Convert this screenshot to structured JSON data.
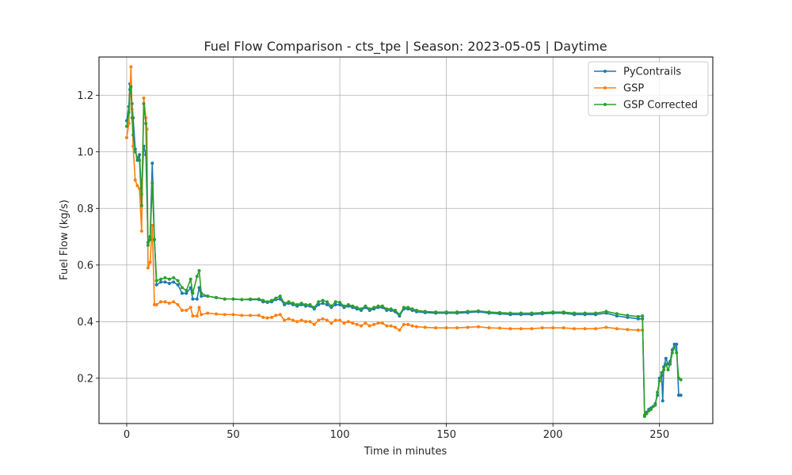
{
  "chart_data": {
    "type": "line",
    "title": "Fuel Flow Comparison - cts_tpe | Season: 2023-05-05 | Daytime",
    "xlabel": "Time in minutes",
    "ylabel": "Fuel Flow (kg/s)",
    "xlim": [
      -13,
      275
    ],
    "ylim": [
      0.04,
      1.335
    ],
    "xticks": [
      0,
      50,
      100,
      150,
      200,
      250
    ],
    "yticks": [
      0.2,
      0.4,
      0.6,
      0.8,
      1.0,
      1.2
    ],
    "xtick_labels": [
      "0",
      "50",
      "100",
      "150",
      "200",
      "250"
    ],
    "ytick_labels": [
      "0.2",
      "0.4",
      "0.6",
      "0.8",
      "1.0",
      "1.2"
    ],
    "grid": true,
    "legend_position": "top-right",
    "series": [
      {
        "name": "PyContrails",
        "color": "#1f77b4",
        "points": [
          [
            0,
            1.11
          ],
          [
            1,
            1.16
          ],
          [
            1.5,
            1.24
          ],
          [
            2.5,
            1.17
          ],
          [
            3,
            1.12
          ],
          [
            4,
            1.01
          ],
          [
            5,
            0.97
          ],
          [
            6,
            0.99
          ],
          [
            7,
            0.85
          ],
          [
            8,
            1.02
          ],
          [
            9,
            0.99
          ],
          [
            10,
            0.68
          ],
          [
            11,
            0.7
          ],
          [
            12,
            0.96
          ],
          [
            13,
            0.69
          ],
          [
            14,
            0.53
          ],
          [
            16,
            0.54
          ],
          [
            18,
            0.54
          ],
          [
            20,
            0.535
          ],
          [
            22,
            0.54
          ],
          [
            24,
            0.53
          ],
          [
            26,
            0.5
          ],
          [
            28,
            0.5
          ],
          [
            30,
            0.52
          ],
          [
            31,
            0.48
          ],
          [
            33,
            0.48
          ],
          [
            34,
            0.52
          ],
          [
            35,
            0.49
          ],
          [
            38,
            0.49
          ],
          [
            42,
            0.485
          ],
          [
            46,
            0.48
          ],
          [
            50,
            0.48
          ],
          [
            54,
            0.478
          ],
          [
            58,
            0.478
          ],
          [
            62,
            0.478
          ],
          [
            64,
            0.47
          ],
          [
            66,
            0.468
          ],
          [
            68,
            0.47
          ],
          [
            70,
            0.478
          ],
          [
            72,
            0.48
          ],
          [
            74,
            0.46
          ],
          [
            76,
            0.465
          ],
          [
            78,
            0.46
          ],
          [
            80,
            0.455
          ],
          [
            82,
            0.46
          ],
          [
            84,
            0.455
          ],
          [
            86,
            0.455
          ],
          [
            88,
            0.445
          ],
          [
            90,
            0.46
          ],
          [
            92,
            0.465
          ],
          [
            94,
            0.46
          ],
          [
            96,
            0.45
          ],
          [
            98,
            0.46
          ],
          [
            100,
            0.46
          ],
          [
            102,
            0.45
          ],
          [
            104,
            0.455
          ],
          [
            106,
            0.45
          ],
          [
            108,
            0.445
          ],
          [
            110,
            0.44
          ],
          [
            112,
            0.45
          ],
          [
            114,
            0.44
          ],
          [
            116,
            0.445
          ],
          [
            118,
            0.45
          ],
          [
            120,
            0.45
          ],
          [
            122,
            0.44
          ],
          [
            124,
            0.44
          ],
          [
            126,
            0.435
          ],
          [
            128,
            0.42
          ],
          [
            130,
            0.445
          ],
          [
            132,
            0.445
          ],
          [
            134,
            0.44
          ],
          [
            136,
            0.435
          ],
          [
            140,
            0.432
          ],
          [
            145,
            0.43
          ],
          [
            150,
            0.43
          ],
          [
            155,
            0.43
          ],
          [
            160,
            0.432
          ],
          [
            165,
            0.435
          ],
          [
            170,
            0.43
          ],
          [
            175,
            0.428
          ],
          [
            180,
            0.425
          ],
          [
            185,
            0.425
          ],
          [
            190,
            0.425
          ],
          [
            195,
            0.428
          ],
          [
            200,
            0.43
          ],
          [
            205,
            0.43
          ],
          [
            210,
            0.425
          ],
          [
            215,
            0.425
          ],
          [
            220,
            0.425
          ],
          [
            225,
            0.43
          ],
          [
            230,
            0.42
          ],
          [
            235,
            0.415
          ],
          [
            240,
            0.41
          ],
          [
            242,
            0.41
          ],
          [
            243,
            0.07
          ],
          [
            244,
            0.08
          ],
          [
            245,
            0.09
          ],
          [
            246,
            0.095
          ],
          [
            247,
            0.1
          ],
          [
            248,
            0.11
          ],
          [
            249,
            0.14
          ],
          [
            250,
            0.2
          ],
          [
            251,
            0.21
          ],
          [
            251.5,
            0.12
          ],
          [
            252,
            0.24
          ],
          [
            253,
            0.27
          ],
          [
            254,
            0.25
          ],
          [
            255,
            0.26
          ],
          [
            256,
            0.3
          ],
          [
            257,
            0.32
          ],
          [
            258,
            0.32
          ],
          [
            259,
            0.14
          ],
          [
            260,
            0.14
          ]
        ]
      },
      {
        "name": "GSP",
        "color": "#ff7f0e",
        "points": [
          [
            0,
            1.05
          ],
          [
            1,
            1.1
          ],
          [
            1.5,
            1.2
          ],
          [
            2,
            1.3
          ],
          [
            2.5,
            1.15
          ],
          [
            3,
            1.02
          ],
          [
            4,
            0.9
          ],
          [
            5,
            0.88
          ],
          [
            6,
            0.87
          ],
          [
            7,
            0.72
          ],
          [
            8,
            1.19
          ],
          [
            9,
            1.12
          ],
          [
            9.5,
            1.08
          ],
          [
            10,
            0.59
          ],
          [
            11,
            0.61
          ],
          [
            12,
            0.74
          ],
          [
            13,
            0.46
          ],
          [
            14,
            0.46
          ],
          [
            16,
            0.47
          ],
          [
            18,
            0.47
          ],
          [
            20,
            0.465
          ],
          [
            22,
            0.47
          ],
          [
            24,
            0.46
          ],
          [
            26,
            0.44
          ],
          [
            28,
            0.44
          ],
          [
            30,
            0.45
          ],
          [
            31,
            0.42
          ],
          [
            33,
            0.42
          ],
          [
            34,
            0.45
          ],
          [
            35,
            0.425
          ],
          [
            38,
            0.43
          ],
          [
            42,
            0.427
          ],
          [
            46,
            0.425
          ],
          [
            50,
            0.425
          ],
          [
            54,
            0.422
          ],
          [
            58,
            0.422
          ],
          [
            62,
            0.422
          ],
          [
            64,
            0.415
          ],
          [
            66,
            0.413
          ],
          [
            68,
            0.415
          ],
          [
            70,
            0.422
          ],
          [
            72,
            0.425
          ],
          [
            74,
            0.405
          ],
          [
            76,
            0.41
          ],
          [
            78,
            0.405
          ],
          [
            80,
            0.4
          ],
          [
            82,
            0.405
          ],
          [
            84,
            0.4
          ],
          [
            86,
            0.4
          ],
          [
            88,
            0.39
          ],
          [
            90,
            0.405
          ],
          [
            92,
            0.41
          ],
          [
            94,
            0.405
          ],
          [
            96,
            0.395
          ],
          [
            98,
            0.405
          ],
          [
            100,
            0.405
          ],
          [
            102,
            0.395
          ],
          [
            104,
            0.4
          ],
          [
            106,
            0.395
          ],
          [
            108,
            0.39
          ],
          [
            110,
            0.385
          ],
          [
            112,
            0.395
          ],
          [
            114,
            0.385
          ],
          [
            116,
            0.39
          ],
          [
            118,
            0.395
          ],
          [
            120,
            0.395
          ],
          [
            122,
            0.385
          ],
          [
            124,
            0.385
          ],
          [
            126,
            0.38
          ],
          [
            128,
            0.37
          ],
          [
            130,
            0.39
          ],
          [
            132,
            0.39
          ],
          [
            134,
            0.385
          ],
          [
            136,
            0.382
          ],
          [
            140,
            0.38
          ],
          [
            145,
            0.378
          ],
          [
            150,
            0.378
          ],
          [
            155,
            0.378
          ],
          [
            160,
            0.38
          ],
          [
            165,
            0.382
          ],
          [
            170,
            0.378
          ],
          [
            175,
            0.377
          ],
          [
            180,
            0.375
          ],
          [
            185,
            0.375
          ],
          [
            190,
            0.375
          ],
          [
            195,
            0.378
          ],
          [
            200,
            0.378
          ],
          [
            205,
            0.378
          ],
          [
            210,
            0.375
          ],
          [
            215,
            0.375
          ],
          [
            220,
            0.375
          ],
          [
            225,
            0.38
          ],
          [
            230,
            0.375
          ],
          [
            235,
            0.372
          ],
          [
            240,
            0.37
          ],
          [
            242,
            0.37
          ]
        ]
      },
      {
        "name": "GSP Corrected",
        "color": "#2ca02c",
        "points": [
          [
            0,
            1.09
          ],
          [
            1,
            1.14
          ],
          [
            1.5,
            1.22
          ],
          [
            2,
            1.23
          ],
          [
            2.5,
            1.12
          ],
          [
            3,
            1.06
          ],
          [
            4,
            1.0
          ],
          [
            5,
            0.98
          ],
          [
            6,
            0.97
          ],
          [
            7,
            0.81
          ],
          [
            8,
            1.17
          ],
          [
            9,
            1.1
          ],
          [
            10,
            0.67
          ],
          [
            11,
            0.69
          ],
          [
            12,
            0.89
          ],
          [
            13,
            0.69
          ],
          [
            14,
            0.545
          ],
          [
            16,
            0.55
          ],
          [
            18,
            0.555
          ],
          [
            20,
            0.55
          ],
          [
            22,
            0.555
          ],
          [
            24,
            0.545
          ],
          [
            26,
            0.52
          ],
          [
            28,
            0.51
          ],
          [
            30,
            0.55
          ],
          [
            31,
            0.5
          ],
          [
            33,
            0.56
          ],
          [
            34,
            0.58
          ],
          [
            35,
            0.5
          ],
          [
            38,
            0.49
          ],
          [
            42,
            0.485
          ],
          [
            46,
            0.48
          ],
          [
            50,
            0.48
          ],
          [
            54,
            0.478
          ],
          [
            58,
            0.48
          ],
          [
            62,
            0.48
          ],
          [
            64,
            0.475
          ],
          [
            66,
            0.47
          ],
          [
            68,
            0.475
          ],
          [
            70,
            0.483
          ],
          [
            72,
            0.49
          ],
          [
            74,
            0.465
          ],
          [
            76,
            0.47
          ],
          [
            78,
            0.465
          ],
          [
            80,
            0.46
          ],
          [
            82,
            0.465
          ],
          [
            84,
            0.46
          ],
          [
            86,
            0.46
          ],
          [
            88,
            0.45
          ],
          [
            90,
            0.47
          ],
          [
            92,
            0.475
          ],
          [
            94,
            0.47
          ],
          [
            96,
            0.455
          ],
          [
            98,
            0.47
          ],
          [
            100,
            0.468
          ],
          [
            102,
            0.455
          ],
          [
            104,
            0.46
          ],
          [
            106,
            0.455
          ],
          [
            108,
            0.45
          ],
          [
            110,
            0.445
          ],
          [
            112,
            0.455
          ],
          [
            114,
            0.445
          ],
          [
            116,
            0.45
          ],
          [
            118,
            0.455
          ],
          [
            120,
            0.455
          ],
          [
            122,
            0.445
          ],
          [
            124,
            0.445
          ],
          [
            126,
            0.44
          ],
          [
            128,
            0.425
          ],
          [
            130,
            0.45
          ],
          [
            132,
            0.45
          ],
          [
            134,
            0.445
          ],
          [
            136,
            0.44
          ],
          [
            140,
            0.436
          ],
          [
            145,
            0.434
          ],
          [
            150,
            0.434
          ],
          [
            155,
            0.434
          ],
          [
            160,
            0.436
          ],
          [
            165,
            0.438
          ],
          [
            170,
            0.434
          ],
          [
            175,
            0.432
          ],
          [
            180,
            0.43
          ],
          [
            185,
            0.43
          ],
          [
            190,
            0.43
          ],
          [
            195,
            0.432
          ],
          [
            200,
            0.434
          ],
          [
            205,
            0.434
          ],
          [
            210,
            0.43
          ],
          [
            215,
            0.43
          ],
          [
            220,
            0.43
          ],
          [
            225,
            0.436
          ],
          [
            230,
            0.428
          ],
          [
            235,
            0.422
          ],
          [
            240,
            0.418
          ],
          [
            242,
            0.42
          ],
          [
            243,
            0.065
          ],
          [
            244,
            0.075
          ],
          [
            245,
            0.085
          ],
          [
            246,
            0.09
          ],
          [
            247,
            0.1
          ],
          [
            248,
            0.105
          ],
          [
            249,
            0.15
          ],
          [
            250,
            0.19
          ],
          [
            251,
            0.22
          ],
          [
            252,
            0.23
          ],
          [
            253,
            0.25
          ],
          [
            254,
            0.23
          ],
          [
            255,
            0.25
          ],
          [
            256,
            0.29
          ],
          [
            257,
            0.31
          ],
          [
            258,
            0.29
          ],
          [
            259,
            0.2
          ],
          [
            260,
            0.195
          ]
        ]
      }
    ]
  }
}
